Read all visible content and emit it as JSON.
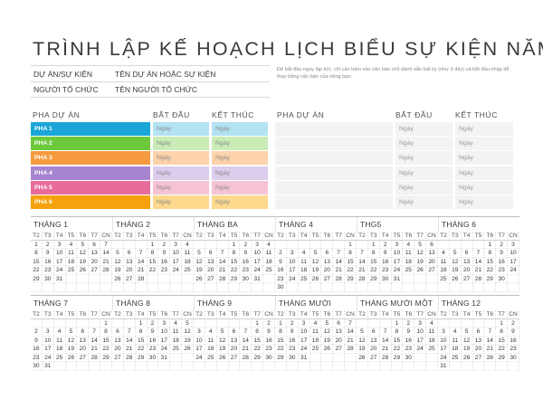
{
  "title": "TRÌNH LẬP KẾ HOẠCH LỊCH BIỂU SỰ KIỆN NĂM",
  "info": [
    {
      "label": "DỰ ÁN/SỰ KIỆN",
      "value": "TÊN DỰ ÁN HOẶC SỰ KIỆN"
    },
    {
      "label": "NGƯỜI TỔ CHỨC",
      "value": "TÊN NGƯỜI TỔ CHỨC"
    }
  ],
  "note": "Để bắt đầu ngay lập tức, chỉ cần bấm vào văn bản chỗ dành sẵn bất kỳ (như ô đây) và bắt đầu nhập để thay bằng văn bản của riêng bạn.",
  "phase_headers": {
    "phase": "PHA DỰ ÁN",
    "start": "BẮT ĐẦU",
    "end": "KẾT THÚC"
  },
  "phases_left": [
    {
      "name": "PHA 1",
      "start": "Ngày",
      "end": "Ngày",
      "color": "#1aa6d8",
      "light": "#b3e2f3"
    },
    {
      "name": "PHA 2",
      "start": "Ngày",
      "end": "Ngày",
      "color": "#6cc93c",
      "light": "#c9ecb6"
    },
    {
      "name": "PHA 3",
      "start": "Ngày",
      "end": "Ngày",
      "color": "#f59a3e",
      "light": "#fcd3ab"
    },
    {
      "name": "PHA 4",
      "start": "Ngày",
      "end": "Ngày",
      "color": "#a684cf",
      "light": "#dcccee"
    },
    {
      "name": "PHA 5",
      "start": "Ngày",
      "end": "Ngày",
      "color": "#e86c9a",
      "light": "#f6c3d6"
    },
    {
      "name": "PHA 6",
      "start": "Ngày",
      "end": "Ngày",
      "color": "#f5a20e",
      "light": "#fcd98d"
    }
  ],
  "phases_right": [
    {
      "name": "",
      "start": "Ngày",
      "end": "Ngày"
    },
    {
      "name": "",
      "start": "Ngày",
      "end": "Ngày"
    },
    {
      "name": "",
      "start": "Ngày",
      "end": "Ngày"
    },
    {
      "name": "",
      "start": "Ngày",
      "end": "Ngày"
    },
    {
      "name": "",
      "start": "Ngày",
      "end": "Ngày"
    },
    {
      "name": "",
      "start": "Ngày",
      "end": "Ngày"
    }
  ],
  "weekdays": [
    "T2",
    "T3",
    "T4",
    "T5",
    "T6",
    "T7",
    "CN"
  ],
  "months": [
    {
      "name": "THÁNG 1",
      "offset": 0,
      "days": 31
    },
    {
      "name": "THÁNG 2",
      "offset": 3,
      "days": 28
    },
    {
      "name": "THÁNG BA",
      "offset": 3,
      "days": 31
    },
    {
      "name": "THÁNG 4",
      "offset": 6,
      "days": 30
    },
    {
      "name": "THG5",
      "offset": 1,
      "days": 31
    },
    {
      "name": "THÁNG 6",
      "offset": 4,
      "days": 30
    },
    {
      "name": "THÁNG 7",
      "offset": 6,
      "days": 31
    },
    {
      "name": "THÁNG 8",
      "offset": 2,
      "days": 31
    },
    {
      "name": "THÁNG 9",
      "offset": 5,
      "days": 30
    },
    {
      "name": "THÁNG MƯỜI",
      "offset": 0,
      "days": 31
    },
    {
      "name": "THÁNG MƯỜI MỘT",
      "offset": 3,
      "days": 30
    },
    {
      "name": "THÁNG 12",
      "offset": 5,
      "days": 31
    }
  ]
}
